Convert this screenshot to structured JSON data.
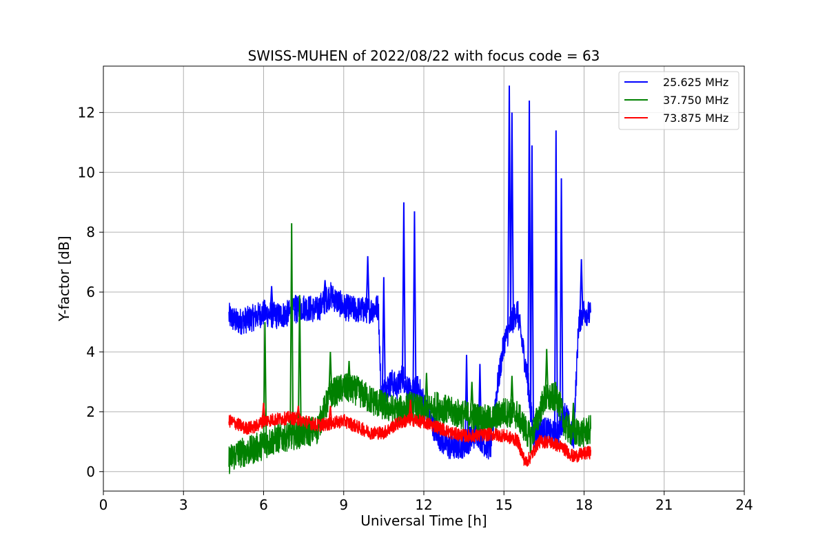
{
  "chart_data": {
    "type": "line",
    "title": "SWISS-MUHEN of 2022/08/22 with focus code = 63",
    "xlabel": "Universal Time [h]",
    "ylabel": "Y-factor [dB]",
    "xlim": [
      0,
      24
    ],
    "ylim": [
      -0.65,
      13.55
    ],
    "xticks": [
      0,
      3,
      6,
      9,
      12,
      15,
      18,
      21,
      24
    ],
    "yticks": [
      0,
      2,
      4,
      6,
      8,
      10,
      12
    ],
    "grid": true,
    "legend_position": "top-right",
    "series": [
      {
        "name": "25.625 MHz",
        "color": "#0000ff",
        "points": [
          [
            4.7,
            5.2
          ],
          [
            5.0,
            5.0
          ],
          [
            5.5,
            5.1
          ],
          [
            6.0,
            5.3
          ],
          [
            6.5,
            5.2
          ],
          [
            7.0,
            5.3
          ],
          [
            7.5,
            5.5
          ],
          [
            8.0,
            5.4
          ],
          [
            8.5,
            5.9
          ],
          [
            9.0,
            5.5
          ],
          [
            9.5,
            5.4
          ],
          [
            10.0,
            5.4
          ],
          [
            10.3,
            5.5
          ],
          [
            10.4,
            2.5
          ],
          [
            10.5,
            2.7
          ],
          [
            10.8,
            3.0
          ],
          [
            11.0,
            2.8
          ],
          [
            11.2,
            3.2
          ],
          [
            11.5,
            2.6
          ],
          [
            11.8,
            2.8
          ],
          [
            12.0,
            2.3
          ],
          [
            12.3,
            1.6
          ],
          [
            12.7,
            1.0
          ],
          [
            13.0,
            0.8
          ],
          [
            13.5,
            0.9
          ],
          [
            14.0,
            1.3
          ],
          [
            14.3,
            0.9
          ],
          [
            14.5,
            0.8
          ],
          [
            14.7,
            2.5
          ],
          [
            15.0,
            4.3
          ],
          [
            15.3,
            5.0
          ],
          [
            15.5,
            5.4
          ],
          [
            15.7,
            4.2
          ],
          [
            15.9,
            3.0
          ],
          [
            16.1,
            1.2
          ],
          [
            16.5,
            1.4
          ],
          [
            17.0,
            1.2
          ],
          [
            17.3,
            2.0
          ],
          [
            17.6,
            1.0
          ],
          [
            17.8,
            5.0
          ],
          [
            18.0,
            5.4
          ],
          [
            18.25,
            5.2
          ]
        ],
        "spikes": [
          [
            6.3,
            6.2
          ],
          [
            7.2,
            5.9
          ],
          [
            8.3,
            6.4
          ],
          [
            9.9,
            7.2
          ],
          [
            10.5,
            6.5
          ],
          [
            11.25,
            9.0
          ],
          [
            11.65,
            8.7
          ],
          [
            13.6,
            3.9
          ],
          [
            14.1,
            3.6
          ],
          [
            15.2,
            12.9
          ],
          [
            15.3,
            12.0
          ],
          [
            15.95,
            12.4
          ],
          [
            16.05,
            10.9
          ],
          [
            16.95,
            11.4
          ],
          [
            17.15,
            9.8
          ],
          [
            17.9,
            7.1
          ]
        ]
      },
      {
        "name": "37.750 MHz",
        "color": "#008000",
        "points": [
          [
            4.7,
            0.4
          ],
          [
            5.0,
            0.6
          ],
          [
            5.5,
            0.7
          ],
          [
            6.0,
            0.9
          ],
          [
            6.5,
            1.1
          ],
          [
            7.0,
            1.2
          ],
          [
            7.5,
            1.3
          ],
          [
            8.0,
            1.4
          ],
          [
            8.5,
            2.6
          ],
          [
            9.0,
            2.8
          ],
          [
            9.5,
            2.7
          ],
          [
            10.0,
            2.4
          ],
          [
            10.5,
            2.2
          ],
          [
            11.0,
            2.0
          ],
          [
            11.5,
            2.2
          ],
          [
            12.0,
            2.0
          ],
          [
            12.5,
            2.2
          ],
          [
            13.0,
            2.0
          ],
          [
            13.5,
            1.9
          ],
          [
            14.0,
            1.8
          ],
          [
            14.5,
            1.7
          ],
          [
            15.0,
            2.0
          ],
          [
            15.5,
            1.9
          ],
          [
            16.0,
            1.1
          ],
          [
            16.5,
            2.4
          ],
          [
            17.0,
            2.5
          ],
          [
            17.3,
            1.5
          ],
          [
            17.6,
            1.3
          ],
          [
            18.0,
            1.3
          ],
          [
            18.25,
            1.4
          ]
        ],
        "spikes": [
          [
            6.05,
            5.0
          ],
          [
            7.05,
            8.3
          ],
          [
            7.35,
            5.9
          ],
          [
            8.5,
            4.0
          ],
          [
            9.2,
            3.7
          ],
          [
            12.1,
            3.3
          ],
          [
            13.8,
            3.0
          ],
          [
            15.3,
            3.2
          ],
          [
            16.6,
            4.1
          ],
          [
            17.6,
            2.3
          ]
        ]
      },
      {
        "name": "73.875 MHz",
        "color": "#ff0000",
        "points": [
          [
            4.7,
            1.7
          ],
          [
            5.0,
            1.6
          ],
          [
            5.3,
            1.45
          ],
          [
            5.7,
            1.5
          ],
          [
            6.0,
            1.7
          ],
          [
            6.5,
            1.75
          ],
          [
            7.0,
            1.8
          ],
          [
            7.5,
            1.7
          ],
          [
            8.0,
            1.55
          ],
          [
            8.5,
            1.6
          ],
          [
            9.0,
            1.7
          ],
          [
            9.5,
            1.5
          ],
          [
            10.0,
            1.3
          ],
          [
            10.5,
            1.3
          ],
          [
            11.0,
            1.6
          ],
          [
            11.5,
            1.75
          ],
          [
            12.0,
            1.65
          ],
          [
            12.5,
            1.5
          ],
          [
            13.0,
            1.3
          ],
          [
            13.5,
            1.2
          ],
          [
            14.0,
            1.2
          ],
          [
            14.5,
            1.25
          ],
          [
            15.0,
            1.2
          ],
          [
            15.5,
            1.05
          ],
          [
            15.8,
            0.3
          ],
          [
            16.0,
            0.5
          ],
          [
            16.3,
            1.0
          ],
          [
            16.7,
            1.0
          ],
          [
            17.2,
            0.8
          ],
          [
            17.6,
            0.5
          ],
          [
            18.0,
            0.6
          ],
          [
            18.25,
            0.65
          ]
        ],
        "spikes": [
          [
            6.0,
            2.3
          ],
          [
            7.3,
            2.2
          ],
          [
            8.5,
            2.2
          ],
          [
            11.5,
            2.4
          ]
        ]
      }
    ]
  }
}
